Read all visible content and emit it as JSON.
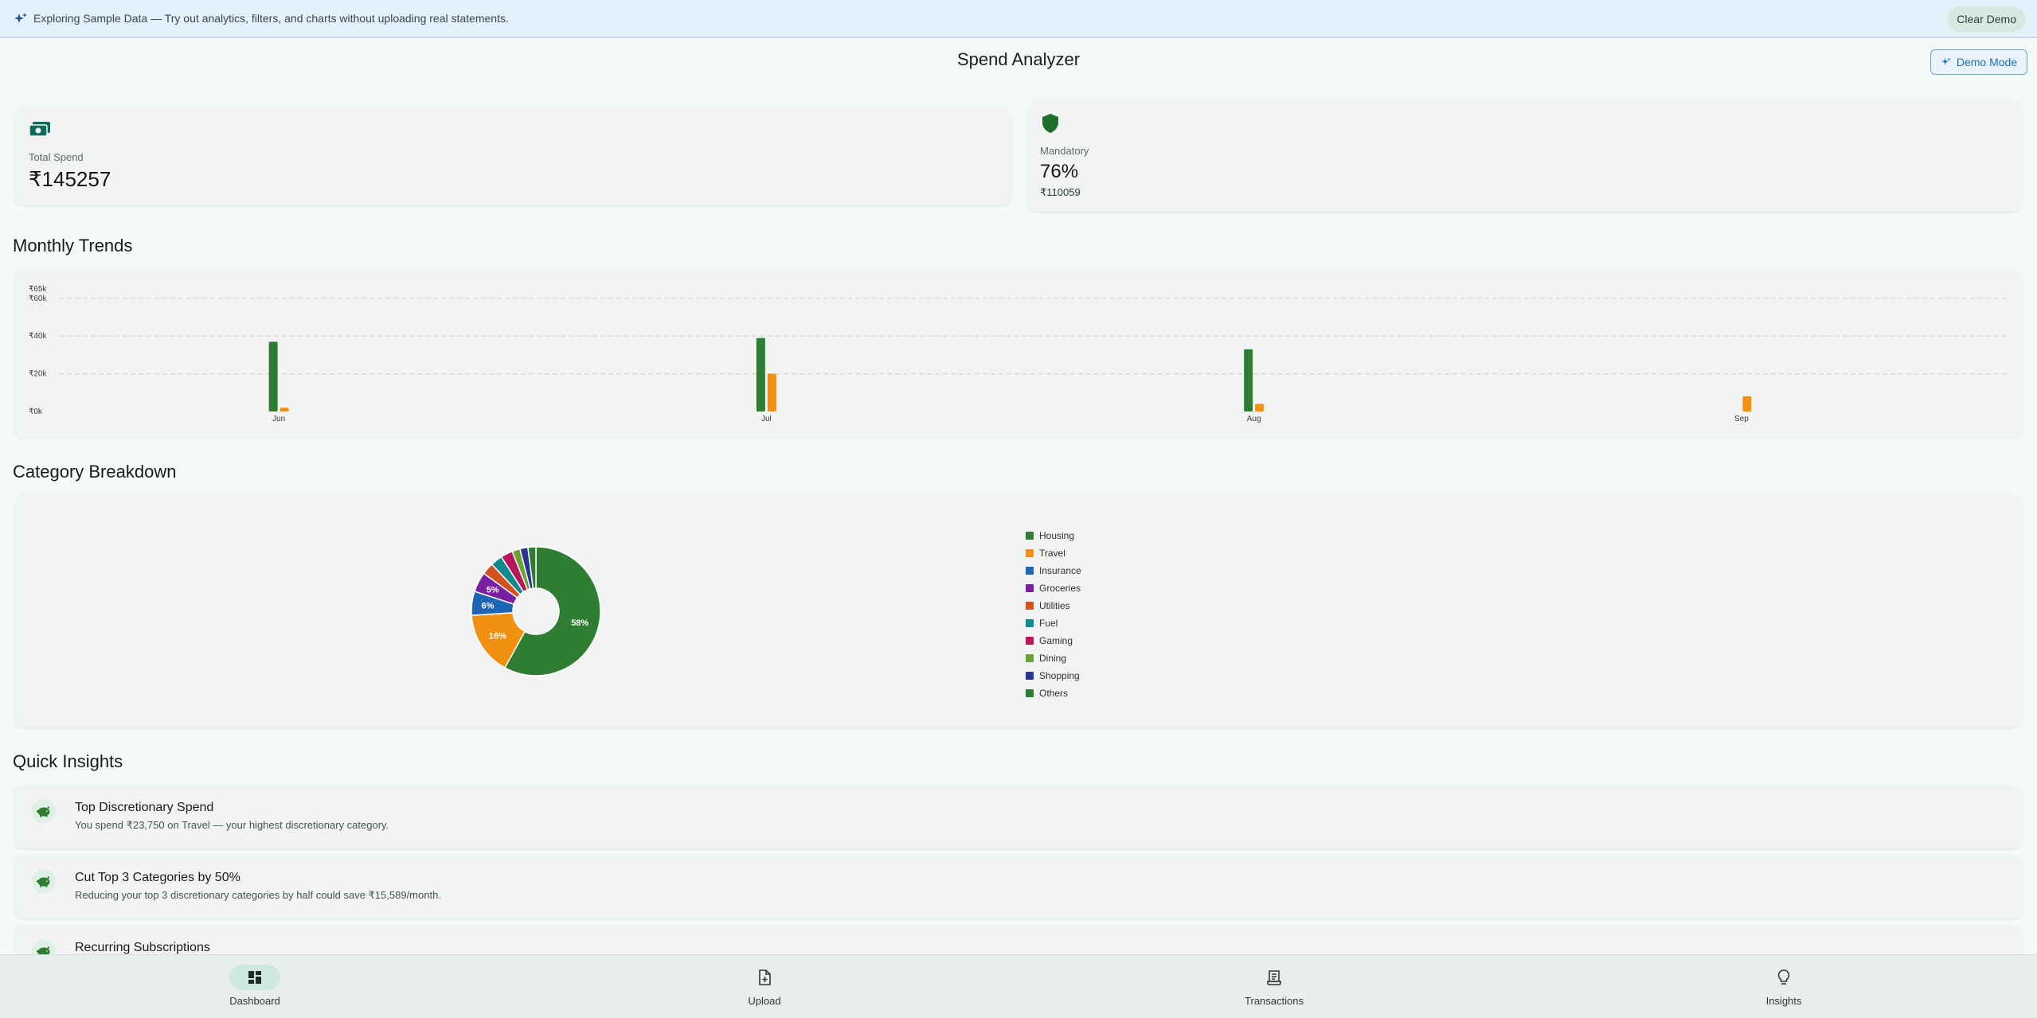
{
  "banner": {
    "text": "Exploring Sample Data — Try out analytics, filters, and charts without uploading real statements.",
    "clear_label": "Clear Demo",
    "icon": "sparkle-icon"
  },
  "header": {
    "title": "Spend Analyzer",
    "demo_mode_label": "Demo Mode"
  },
  "stats": {
    "total_spend": {
      "label": "Total Spend",
      "value": "₹145257",
      "icon": "money-icon"
    },
    "mandatory": {
      "label": "Mandatory",
      "value": "76%",
      "sub": "₹110059",
      "icon": "shield-icon"
    }
  },
  "sections": {
    "monthly_trends": "Monthly Trends",
    "category_breakdown": "Category Breakdown",
    "quick_insights": "Quick Insights"
  },
  "chart_data": [
    {
      "type": "bar",
      "categories": [
        "Jun",
        "Jul",
        "Aug",
        "Sep"
      ],
      "series": [
        {
          "values": [
            37000,
            39000,
            33000,
            0
          ],
          "color": "#2e7d32"
        },
        {
          "values": [
            2000,
            20000,
            4000,
            8000
          ],
          "color": "#f29111"
        }
      ],
      "y_ticks": [
        "₹0k",
        "₹20k",
        "₹40k",
        "₹60k",
        "₹65k"
      ],
      "y_tick_values": [
        0,
        20000,
        40000,
        60000,
        65000
      ],
      "ylim": [
        0,
        65000
      ],
      "grid": true
    },
    {
      "type": "pie",
      "donut": true,
      "categories": [
        "Housing",
        "Travel",
        "Insurance",
        "Groceries",
        "Utilities",
        "Fuel",
        "Gaming",
        "Dining",
        "Shopping",
        "Others"
      ],
      "values": [
        58,
        16,
        6,
        5,
        3,
        3,
        3,
        2,
        2,
        2
      ],
      "labels": [
        "58%",
        "16%",
        "6%",
        "5%",
        "",
        "",
        "",
        "",
        "",
        ""
      ],
      "colors": [
        "#2e7d32",
        "#f29111",
        "#1f65b5",
        "#7b1fa2",
        "#d4501e",
        "#0f8a8e",
        "#b5185b",
        "#6ba032",
        "#283593",
        "#2e7d32"
      ],
      "legend": "right"
    }
  ],
  "insights": [
    {
      "title": "Top Discretionary Spend",
      "desc": "You spend ₹23,750 on Travel — your highest discretionary category.",
      "icon": "piggy-bank-icon"
    },
    {
      "title": "Cut Top 3 Categories by 50%",
      "desc": "Reducing your top 3 discretionary categories by half could save ₹15,589/month.",
      "icon": "piggy-bank-icon"
    },
    {
      "title": "Recurring Subscriptions",
      "desc": "",
      "icon": "piggy-bank-icon"
    }
  ],
  "nav": [
    {
      "label": "Dashboard",
      "icon": "dashboard-icon",
      "active": true
    },
    {
      "label": "Upload",
      "icon": "upload-file-icon",
      "active": false
    },
    {
      "label": "Transactions",
      "icon": "receipt-icon",
      "active": false
    },
    {
      "label": "Insights",
      "icon": "lightbulb-icon",
      "active": false
    }
  ]
}
